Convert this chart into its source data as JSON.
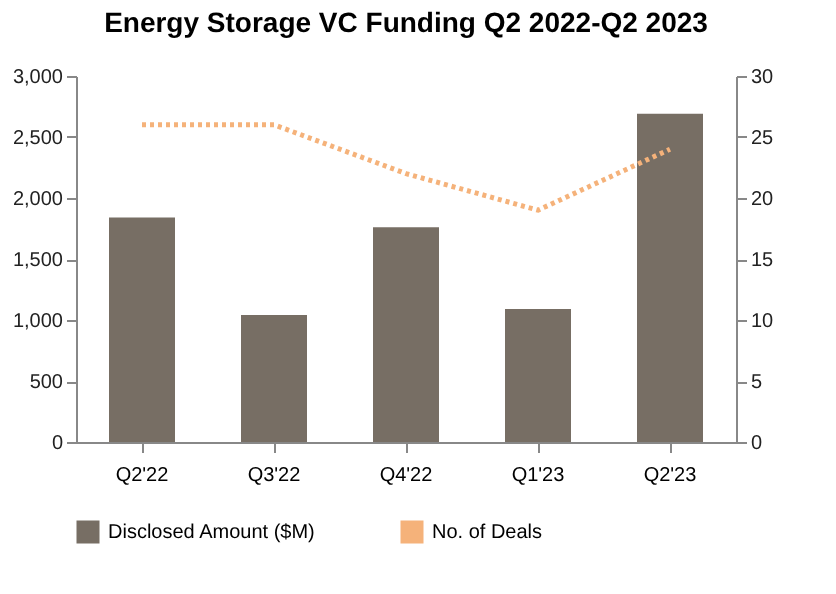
{
  "chart_data": {
    "type": "bar",
    "title": "Energy Storage VC Funding Q2 2022-Q2 2023",
    "categories": [
      "Q2'22",
      "Q3'22",
      "Q4'22",
      "Q1'23",
      "Q2'23"
    ],
    "series": [
      {
        "name": "Disclosed Amount ($M)",
        "color": "#776e64",
        "values": [
          1840,
          1040,
          1760,
          1090,
          2690
        ]
      },
      {
        "name": "No. of Deals",
        "type": "line",
        "axis": "y2",
        "color": "#f5b27a",
        "line_style": "dotted",
        "values": [
          26,
          26,
          22,
          19,
          24
        ]
      }
    ],
    "ylim": [
      0,
      3000
    ],
    "yticks": [
      {
        "value": 0,
        "label": "0"
      },
      {
        "value": 500,
        "label": "500"
      },
      {
        "value": 1000,
        "label": "1,000"
      },
      {
        "value": 1500,
        "label": "1,500"
      },
      {
        "value": 2000,
        "label": "2,000"
      },
      {
        "value": 2500,
        "label": "2,500"
      },
      {
        "value": 3000,
        "label": "3,000"
      }
    ],
    "y2lim": [
      0,
      30
    ],
    "y2ticks": [
      0,
      5,
      10,
      15,
      20,
      25,
      30
    ],
    "grid": false,
    "legend": "bottom",
    "marker": "none"
  }
}
